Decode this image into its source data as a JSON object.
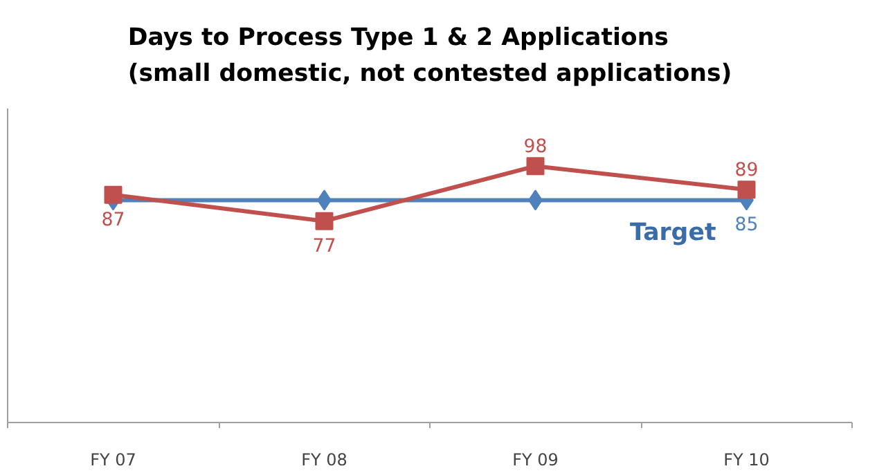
{
  "chart_data": {
    "type": "line",
    "title": "Days to Process Type 1 & 2 Applications\n(small domestic, not contested applications)",
    "categories": [
      "FY 07",
      "FY 08",
      "FY 09",
      "FY 10"
    ],
    "ylim": [
      0,
      120
    ],
    "series": [
      {
        "name": "Target",
        "color": "#4f81bd",
        "marker": "diamond",
        "values": [
          85,
          85,
          85,
          85
        ],
        "value_labels": [
          null,
          null,
          null,
          "85"
        ]
      },
      {
        "color": "#c0504d",
        "marker": "square",
        "values": [
          87,
          77,
          98,
          89
        ],
        "value_labels": [
          "87",
          "77",
          "98",
          "89"
        ]
      }
    ],
    "grid": false,
    "tick_labels": "x"
  }
}
